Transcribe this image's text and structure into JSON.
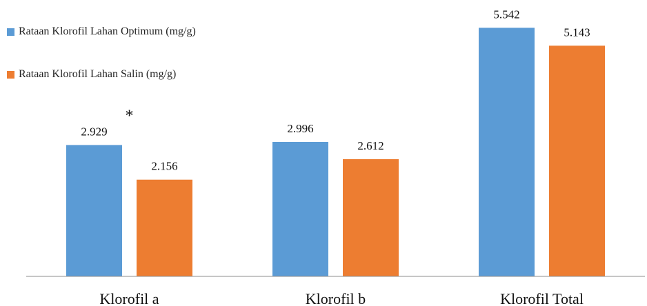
{
  "chart_data": {
    "type": "bar",
    "categories": [
      "Klorofil a",
      "Klorofil b",
      "Klorofil Total"
    ],
    "series": [
      {
        "name": "Rataan Klorofil Lahan Optimum (mg/g)",
        "color": "#5b9bd5",
        "values": [
          2.929,
          2.996,
          5.542
        ]
      },
      {
        "name": "Rataan Klorofil Lahan Salin (mg/g)",
        "color": "#ed7d31",
        "values": [
          2.156,
          2.612,
          5.143
        ]
      }
    ],
    "data_labels": [
      [
        "2.929",
        "2.996",
        "5.542"
      ],
      [
        "2.156",
        "2.612",
        "5.143"
      ]
    ],
    "annotations": [
      {
        "text": "*",
        "category": "Klorofil a"
      }
    ],
    "title": "",
    "xlabel": "",
    "ylabel": "",
    "ylim": [
      0,
      5.9
    ],
    "grid": false,
    "y_axis_visible": false,
    "legend_placement": "top-left"
  }
}
